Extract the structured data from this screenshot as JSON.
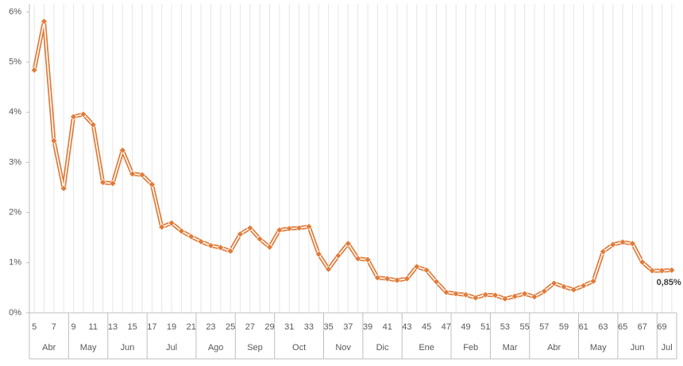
{
  "chart_data": {
    "type": "line",
    "x": [
      5,
      6,
      7,
      8,
      9,
      10,
      11,
      12,
      13,
      14,
      15,
      16,
      17,
      18,
      19,
      20,
      21,
      22,
      23,
      24,
      25,
      26,
      27,
      28,
      29,
      30,
      31,
      32,
      33,
      34,
      35,
      36,
      37,
      38,
      39,
      40,
      41,
      42,
      43,
      44,
      45,
      46,
      47,
      48,
      49,
      50,
      51,
      52,
      53,
      54,
      55,
      56,
      57,
      58,
      59,
      60,
      61,
      62,
      63,
      64,
      65,
      66,
      67,
      68,
      69,
      70
    ],
    "series": [
      {
        "color": "#e07b39",
        "values": [
          4.84,
          5.81,
          3.43,
          2.48,
          3.91,
          3.96,
          3.75,
          2.6,
          2.58,
          3.24,
          2.77,
          2.75,
          2.56,
          1.71,
          1.79,
          1.63,
          1.52,
          1.42,
          1.34,
          1.3,
          1.23,
          1.57,
          1.69,
          1.47,
          1.31,
          1.65,
          1.68,
          1.69,
          1.72,
          1.17,
          0.87,
          1.14,
          1.38,
          1.08,
          1.06,
          0.7,
          0.68,
          0.65,
          0.68,
          0.92,
          0.85,
          0.62,
          0.41,
          0.38,
          0.36,
          0.3,
          0.36,
          0.35,
          0.28,
          0.33,
          0.38,
          0.32,
          0.43,
          0.59,
          0.52,
          0.46,
          0.54,
          0.63,
          1.22,
          1.36,
          1.41,
          1.38,
          1.01,
          0.84,
          0.84,
          0.85
        ],
        "value_labels": [
          null,
          null,
          null,
          null,
          null,
          null,
          null,
          null,
          null,
          null,
          null,
          null,
          null,
          null,
          null,
          null,
          null,
          null,
          null,
          null,
          null,
          null,
          null,
          null,
          null,
          null,
          null,
          null,
          null,
          null,
          null,
          null,
          null,
          null,
          null,
          null,
          null,
          null,
          null,
          null,
          null,
          null,
          null,
          null,
          null,
          null,
          null,
          null,
          null,
          null,
          null,
          null,
          null,
          null,
          null,
          null,
          null,
          null,
          null,
          null,
          null,
          null,
          null,
          null,
          null,
          "0,85%"
        ]
      }
    ],
    "xlim": [
      4.5,
      70.5
    ],
    "xticks": [
      5,
      7,
      9,
      11,
      13,
      15,
      17,
      19,
      21,
      23,
      25,
      27,
      29,
      31,
      33,
      35,
      37,
      39,
      41,
      43,
      45,
      47,
      49,
      51,
      53,
      55,
      57,
      59,
      61,
      63,
      65,
      67,
      69
    ],
    "ylim": [
      0,
      6
    ],
    "yticks": [
      {
        "value": 0,
        "label": "0%"
      },
      {
        "value": 1,
        "label": "1%"
      },
      {
        "value": 2,
        "label": "2%"
      },
      {
        "value": 3,
        "label": "3%"
      },
      {
        "value": 4,
        "label": "4%"
      },
      {
        "value": 5,
        "label": "5%"
      },
      {
        "value": 6,
        "label": "6%"
      }
    ],
    "groups": [
      {
        "label": "Abr",
        "start": 5,
        "end": 8
      },
      {
        "label": "May",
        "start": 9,
        "end": 12
      },
      {
        "label": "Jun",
        "start": 13,
        "end": 16
      },
      {
        "label": "Jul",
        "start": 17,
        "end": 21
      },
      {
        "label": "Ago",
        "start": 22,
        "end": 25
      },
      {
        "label": "Sep",
        "start": 26,
        "end": 29
      },
      {
        "label": "Oct",
        "start": 30,
        "end": 34
      },
      {
        "label": "Nov",
        "start": 35,
        "end": 38
      },
      {
        "label": "Dic",
        "start": 39,
        "end": 42
      },
      {
        "label": "Ene",
        "start": 43,
        "end": 47
      },
      {
        "label": "Feb",
        "start": 48,
        "end": 51
      },
      {
        "label": "Mar",
        "start": 52,
        "end": 55
      },
      {
        "label": "Abr",
        "start": 56,
        "end": 60
      },
      {
        "label": "May",
        "start": 61,
        "end": 64
      },
      {
        "label": "Jun",
        "start": 65,
        "end": 68
      },
      {
        "label": "Jul",
        "start": 69,
        "end": 70
      }
    ],
    "grid": true
  }
}
